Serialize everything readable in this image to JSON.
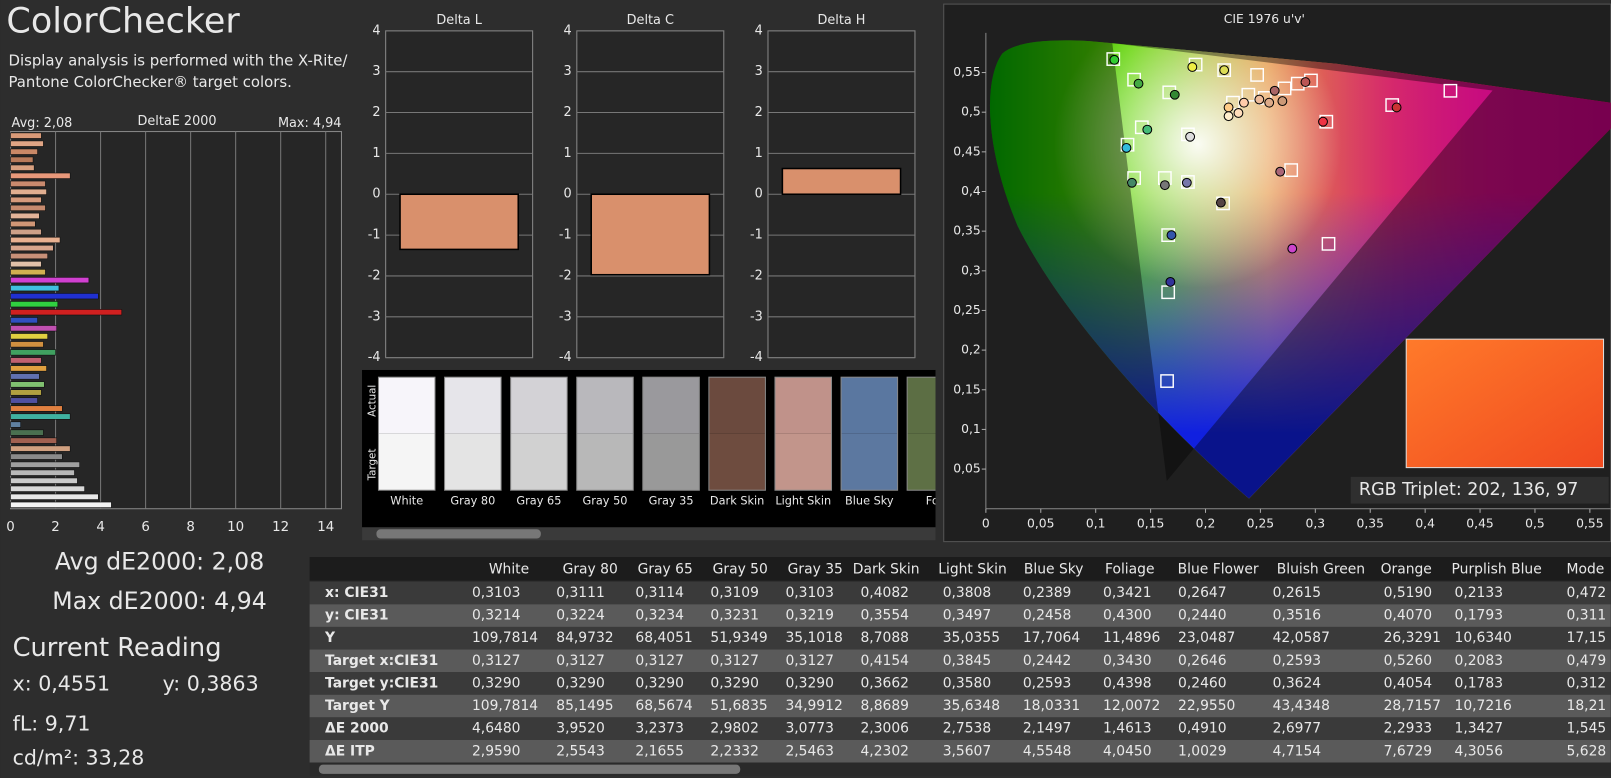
{
  "header": {
    "title": "ColorChecker",
    "description": [
      "Display analysis is performed with the X-Rite/",
      "Pantone ColorChecker® target colors."
    ]
  },
  "chart_data": [
    {
      "type": "bar",
      "orientation": "horizontal",
      "title": "DeltaE 2000",
      "avg_label": "Avg: 2,08",
      "max_label": "Max: 4,94",
      "values": [
        1.37,
        1.46,
        1.2,
        1.0,
        1.05,
        2.65,
        1.55,
        1.6,
        1.37,
        1.55,
        1.28,
        1.1,
        1.37,
        2.2,
        1.9,
        1.65,
        1.37,
        1.55,
        3.48,
        2.15,
        3.9,
        2.1,
        4.94,
        1.2,
        2.05,
        1.65,
        1.46,
        2.0,
        1.37,
        1.6,
        1.28,
        1.5,
        1.37,
        1.2,
        2.3,
        2.65,
        0.45,
        1.46,
        2.05,
        2.65,
        2.3,
        3.07,
        2.84,
        2.97,
        3.29,
        3.9,
        4.48
      ],
      "colors": [
        "#d99a78",
        "#e0a585",
        "#c98866",
        "#b87a5a",
        "#d8a080",
        "#e8987a",
        "#c98a6e",
        "#e0ae90",
        "#d69a7c",
        "#c68a6e",
        "#e2b298",
        "#d09676",
        "#cda088",
        "#e8b090",
        "#d8a58c",
        "#c89078",
        "#e0c0a8",
        "#d0b050",
        "#d040d0",
        "#40c0e0",
        "#2030d0",
        "#30d040",
        "#d02020",
        "#3050c0",
        "#c050b0",
        "#e0d040",
        "#d09040",
        "#40a060",
        "#c06070",
        "#e0a040",
        "#6070b0",
        "#80c070",
        "#b0a040",
        "#5050a0",
        "#e08040",
        "#40b0a0",
        "#6080a0",
        "#4a7050",
        "#a06050",
        "#d0a080",
        "#8a8a8a",
        "#a0a0a0",
        "#b8b8b8",
        "#cacaca",
        "#d8d8d8",
        "#e8e8e8",
        "#f4f4f4"
      ],
      "xlim": [
        0,
        14.7
      ],
      "xticks": [
        0,
        2,
        4,
        6,
        8,
        10,
        12,
        14
      ],
      "grid": true
    },
    {
      "type": "bar",
      "orientation": "vertical",
      "title": "Delta L",
      "values": [
        -1.35
      ],
      "color": "#d9906c",
      "ylim": [
        -4,
        4
      ],
      "yticks": [
        -4,
        -3,
        -2,
        -1,
        0,
        1,
        2,
        3,
        4
      ],
      "grid": true
    },
    {
      "type": "bar",
      "orientation": "vertical",
      "title": "Delta C",
      "values": [
        -1.97
      ],
      "color": "#d9906c",
      "ylim": [
        -4,
        4
      ],
      "yticks": [
        -4,
        -3,
        -2,
        -1,
        0,
        1,
        2,
        3,
        4
      ],
      "grid": true
    },
    {
      "type": "bar",
      "orientation": "vertical",
      "title": "Delta H",
      "values": [
        0.63
      ],
      "color": "#d9906c",
      "ylim": [
        -4,
        4
      ],
      "yticks": [
        -4,
        -3,
        -2,
        -1,
        0,
        1,
        2,
        3,
        4
      ],
      "grid": true
    },
    {
      "type": "scatter",
      "title": "CIE 1976 u'v'",
      "xlim": [
        0,
        0.569
      ],
      "ylim": [
        0,
        0.6
      ],
      "xticks": [
        0,
        {
          "value": 0.05,
          "label": "0,05"
        },
        {
          "value": 0.1,
          "label": "0,1"
        },
        {
          "value": 0.15,
          "label": "0,15"
        },
        {
          "value": 0.2,
          "label": "0,2"
        },
        {
          "value": 0.25,
          "label": "0,25"
        },
        {
          "value": 0.3,
          "label": "0,3"
        },
        {
          "value": 0.35,
          "label": "0,35"
        },
        {
          "value": 0.4,
          "label": "0,4"
        },
        {
          "value": 0.45,
          "label": "0,45"
        },
        {
          "value": 0.5,
          "label": "0,5"
        },
        {
          "value": 0.55,
          "label": "0,55"
        }
      ],
      "yticks": [
        {
          "value": 0.05,
          "label": "0,05"
        },
        {
          "value": 0.1,
          "label": "0,1"
        },
        {
          "value": 0.15,
          "label": "0,15"
        },
        {
          "value": 0.2,
          "label": "0,2"
        },
        {
          "value": 0.25,
          "label": "0,25"
        },
        {
          "value": 0.3,
          "label": "0,3"
        },
        {
          "value": 0.35,
          "label": "0,35"
        },
        {
          "value": 0.4,
          "label": "0,4"
        },
        {
          "value": 0.45,
          "label": "0,45"
        },
        {
          "value": 0.5,
          "label": "0,5"
        },
        {
          "value": 0.55,
          "label": "0,55"
        }
      ],
      "target_points": {
        "x": [
          0.116,
          0.135,
          0.167,
          0.191,
          0.217,
          0.247,
          0.272,
          0.284,
          0.296,
          0.254,
          0.31,
          0.37,
          0.423,
          0.142,
          0.129,
          0.184,
          0.135,
          0.163,
          0.184,
          0.216,
          0.278,
          0.312,
          0.166,
          0.166,
          0.165,
          0.225,
          0.239
        ],
        "y": [
          0.567,
          0.541,
          0.525,
          0.56,
          0.553,
          0.547,
          0.53,
          0.536,
          0.54,
          0.518,
          0.488,
          0.509,
          0.527,
          0.481,
          0.459,
          0.472,
          0.417,
          0.417,
          0.412,
          0.385,
          0.427,
          0.334,
          0.345,
          0.273,
          0.161,
          0.512,
          0.522
        ]
      },
      "measured_points": {
        "x": [
          0.117,
          0.139,
          0.172,
          0.188,
          0.217,
          0.221,
          0.263,
          0.291,
          0.307,
          0.374,
          0.147,
          0.128,
          0.186,
          0.133,
          0.163,
          0.183,
          0.214,
          0.268,
          0.279,
          0.169,
          0.168,
          0.235,
          0.249,
          0.258,
          0.27,
          0.23,
          0.221
        ],
        "y": [
          0.566,
          0.536,
          0.522,
          0.557,
          0.553,
          0.506,
          0.527,
          0.538,
          0.488,
          0.506,
          0.478,
          0.455,
          0.469,
          0.411,
          0.408,
          0.411,
          0.386,
          0.425,
          0.328,
          0.345,
          0.286,
          0.512,
          0.516,
          0.512,
          0.514,
          0.499,
          0.495
        ],
        "colors": [
          "#33cc33",
          "#44aa44",
          "#338833",
          "#eeee44",
          "#dddd55",
          "#ffcc88",
          "#aa6666",
          "#bb5555",
          "#ee3344",
          "#cc3333",
          "#44bb77",
          "#33bbdd",
          "#dddddd",
          "#448866",
          "#777777",
          "#7777aa",
          "#554444",
          "#aa6677",
          "#cc44cc",
          "#3355aa",
          "#333399",
          "#ffccaa",
          "#eebb99",
          "#ddaa88",
          "#cc9977",
          "#ffddbb",
          "#ffeecc"
        ]
      },
      "rgb_triplet": "RGB Triplet: 202, 136, 97"
    }
  ],
  "swatches": {
    "actual_label": "Actual",
    "target_label": "Target",
    "names": [
      "White",
      "Gray 80",
      "Gray 65",
      "Gray 50",
      "Gray 35",
      "Dark Skin",
      "Light Skin",
      "Blue Sky",
      "Foli"
    ],
    "actual_colors": [
      "#f7f5fa",
      "#e6e5ea",
      "#d3d2d6",
      "#b9b8bc",
      "#9a999d",
      "#6b4a3e",
      "#c0928a",
      "#5a77a0",
      "#5c6e44"
    ],
    "target_colors": [
      "#f5f5f5",
      "#e4e4e4",
      "#d1d1d1",
      "#b8b8b8",
      "#999999",
      "#6e4c3f",
      "#c2958b",
      "#5c78a0",
      "#5e7045"
    ]
  },
  "summary": {
    "avg": "Avg dE2000: 2,08",
    "max": "Max dE2000: 4,94",
    "current_reading": "Current Reading",
    "x": "x: 0,4551",
    "y": "y: 0,3863",
    "fl": "fL: 9,71",
    "luminance": "cd/m²: 33,28"
  },
  "table": {
    "columns": [
      "White",
      "Gray 80",
      "Gray 65",
      "Gray 50",
      "Gray 35",
      "Dark Skin",
      "Light Skin",
      "Blue Sky",
      "Foliage",
      "Blue Flower",
      "Bluish Green",
      "Orange",
      "Purplish Blue",
      "Mode"
    ],
    "rows": [
      {
        "label": "x: CIE31",
        "cells": [
          "0,3103",
          "0,3111",
          "0,3114",
          "0,3109",
          "0,3103",
          "0,4082",
          "0,3808",
          "0,2389",
          "0,3421",
          "0,2647",
          "0,2615",
          "0,5190",
          "0,2133",
          "0,472"
        ]
      },
      {
        "label": "y: CIE31",
        "cells": [
          "0,3214",
          "0,3224",
          "0,3234",
          "0,3231",
          "0,3219",
          "0,3554",
          "0,3497",
          "0,2458",
          "0,4300",
          "0,2440",
          "0,3516",
          "0,4070",
          "0,1793",
          "0,311"
        ]
      },
      {
        "label": "Y",
        "cells": [
          "109,7814",
          "84,9732",
          "68,4051",
          "51,9349",
          "35,1018",
          "8,7088",
          "35,0355",
          "17,7064",
          "11,4896",
          "23,0487",
          "42,0587",
          "26,3291",
          "10,6340",
          "17,15"
        ]
      },
      {
        "label": "Target x:CIE31",
        "cells": [
          "0,3127",
          "0,3127",
          "0,3127",
          "0,3127",
          "0,3127",
          "0,4154",
          "0,3845",
          "0,2442",
          "0,3430",
          "0,2646",
          "0,2593",
          "0,5260",
          "0,2083",
          "0,479"
        ]
      },
      {
        "label": "Target y:CIE31",
        "cells": [
          "0,3290",
          "0,3290",
          "0,3290",
          "0,3290",
          "0,3290",
          "0,3662",
          "0,3580",
          "0,2593",
          "0,4398",
          "0,2460",
          "0,3624",
          "0,4054",
          "0,1783",
          "0,312"
        ]
      },
      {
        "label": "Target Y",
        "cells": [
          "109,7814",
          "85,1495",
          "68,5674",
          "51,6835",
          "34,9912",
          "8,8689",
          "35,6348",
          "18,0331",
          "12,0072",
          "22,9550",
          "43,4348",
          "28,7157",
          "10,7216",
          "18,21"
        ]
      },
      {
        "label": "ΔE 2000",
        "cells": [
          "4,6480",
          "3,9520",
          "3,2373",
          "2,9802",
          "3,0773",
          "2,3006",
          "2,7538",
          "2,1497",
          "1,4613",
          "0,4910",
          "2,6977",
          "2,2933",
          "1,3427",
          "1,545"
        ]
      },
      {
        "label": "ΔE ITP",
        "cells": [
          "2,9590",
          "2,5543",
          "2,1655",
          "2,2332",
          "2,5463",
          "4,2302",
          "3,5607",
          "4,5548",
          "4,0450",
          "1,0029",
          "4,7154",
          "7,6729",
          "4,3056",
          "5,628"
        ]
      }
    ]
  }
}
